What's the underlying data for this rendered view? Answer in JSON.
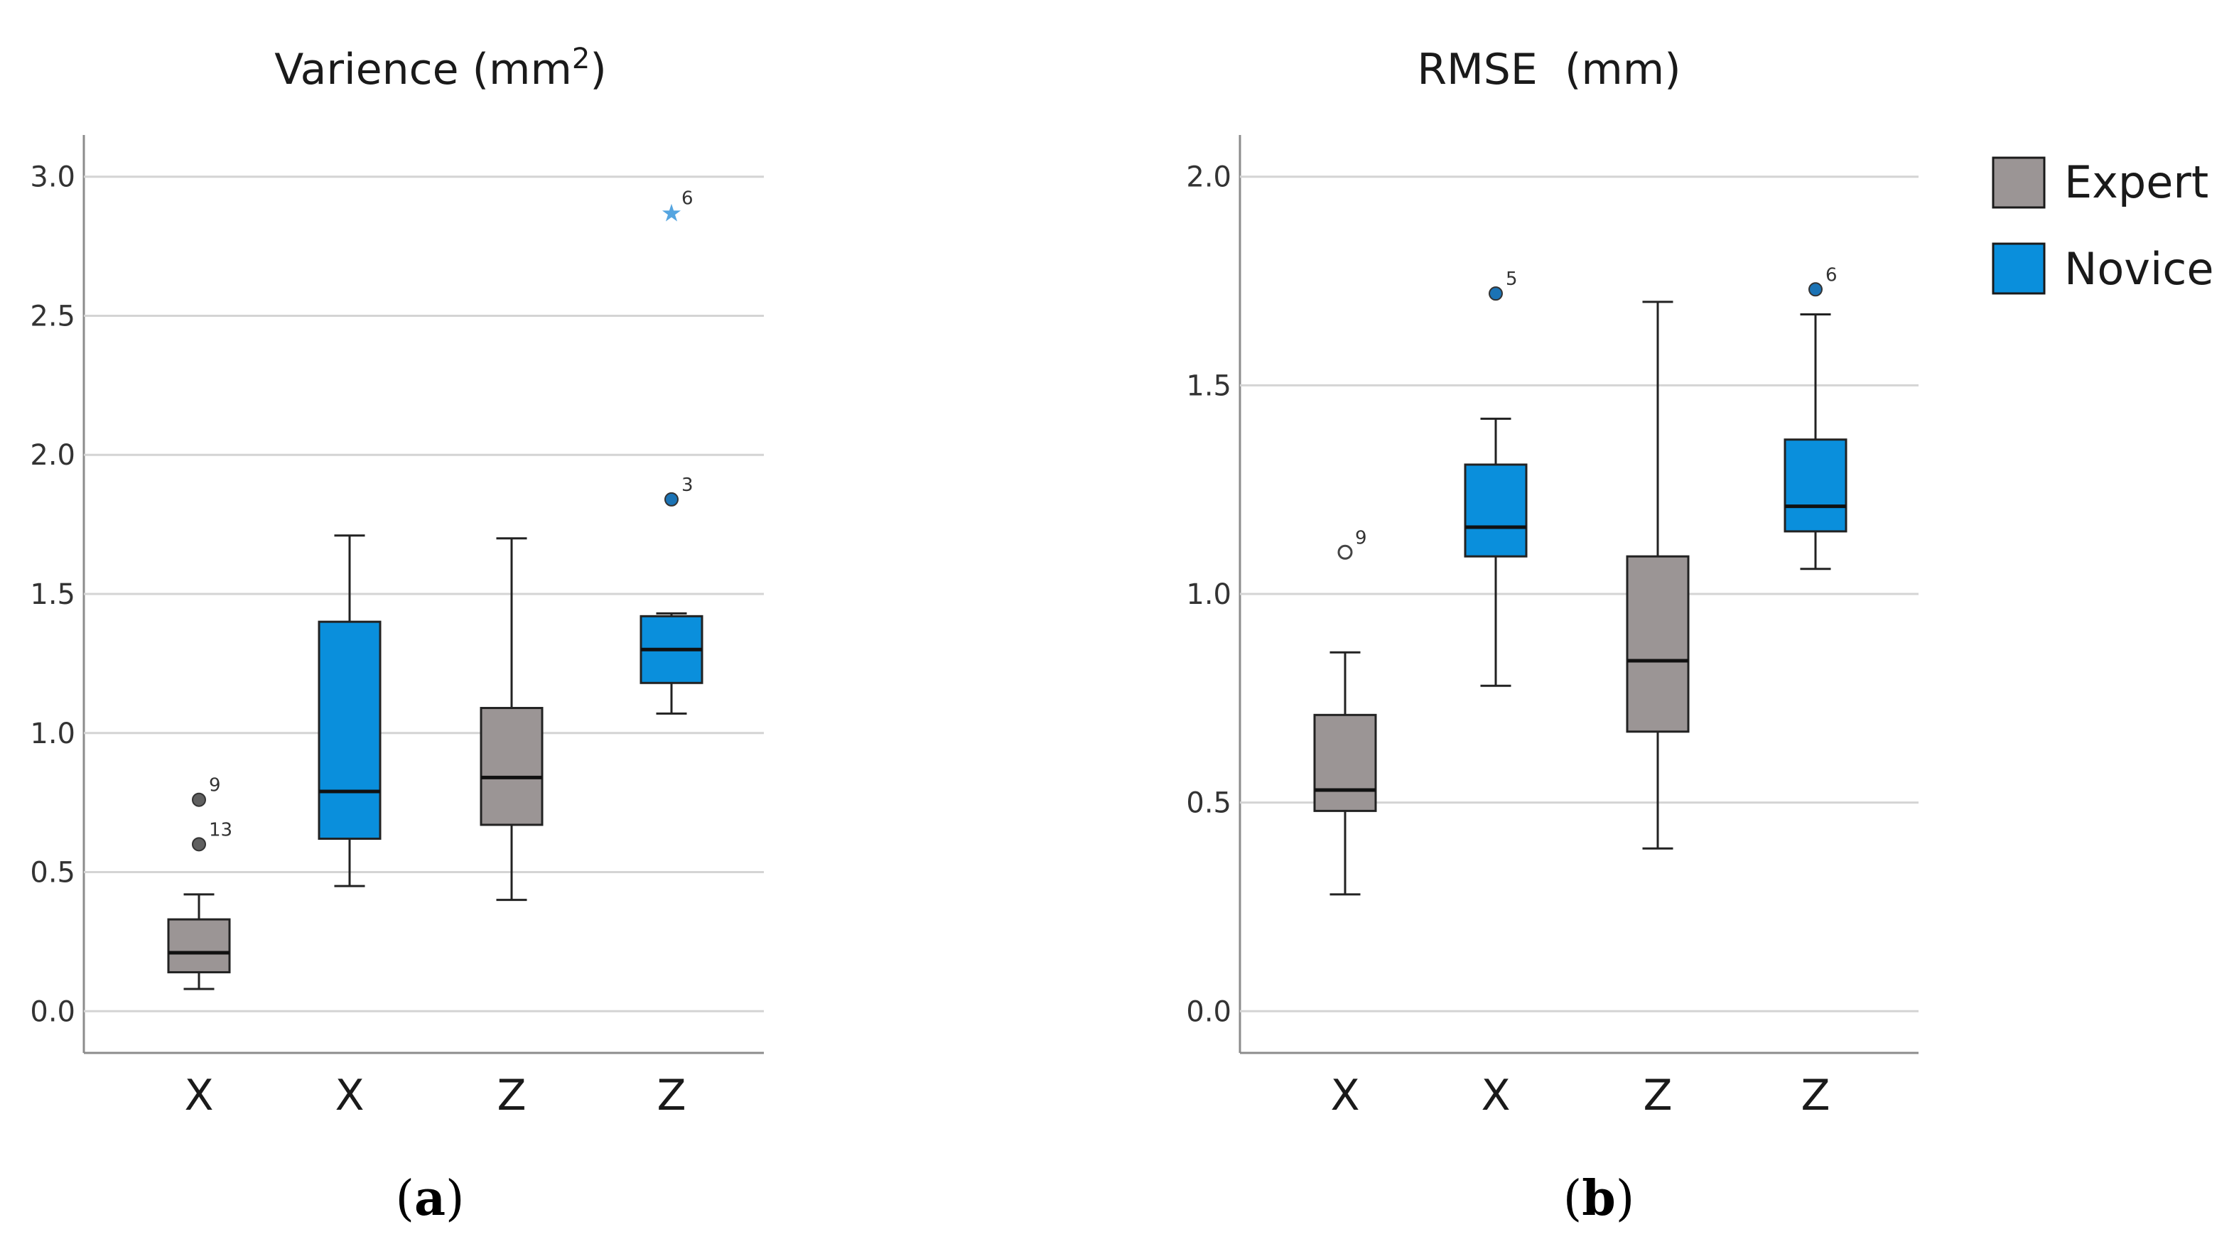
{
  "colors": {
    "expert": "#9b9595",
    "novice": "#0a8fdc",
    "outlier_expert": "#5f5f5f",
    "outlier_novice": "#1b73b5",
    "extreme_novice": "#55a5e0",
    "gridline": "#d4d4d4",
    "axis": "#8c8c8c",
    "whisker": "#222222"
  },
  "legend": {
    "items": [
      {
        "label": "Expert",
        "color_key": "expert"
      },
      {
        "label": "Novice",
        "color_key": "novice"
      }
    ],
    "placement": "right"
  },
  "chart_data": [
    {
      "type": "box",
      "panel_label": "a",
      "title": "Varience (mm",
      "title_superscript": "2",
      "title_suffix": ")",
      "ylim": [
        -0.15,
        3.15
      ],
      "yticks": [
        "0.0",
        "0.5",
        "1.0",
        "1.5",
        "2.0",
        "2.5",
        "3.0"
      ],
      "categories": [
        "X",
        "X",
        "Z",
        "Z"
      ],
      "boxes": [
        {
          "category": "X",
          "group": "Expert",
          "min": 0.08,
          "q1": 0.14,
          "median": 0.21,
          "q3": 0.33,
          "max": 0.42,
          "outliers": [
            {
              "value": 0.76,
              "label": "9",
              "kind": "outlier"
            },
            {
              "value": 0.6,
              "label": "13",
              "kind": "outlier"
            }
          ]
        },
        {
          "category": "X",
          "group": "Novice",
          "min": 0.45,
          "q1": 0.62,
          "median": 0.79,
          "q3": 1.4,
          "max": 1.71,
          "outliers": []
        },
        {
          "category": "Z",
          "group": "Expert",
          "min": 0.4,
          "q1": 0.67,
          "median": 0.84,
          "q3": 1.09,
          "max": 1.7,
          "outliers": []
        },
        {
          "category": "Z",
          "group": "Novice",
          "min": 1.07,
          "q1": 1.18,
          "median": 1.3,
          "q3": 1.42,
          "max": 1.43,
          "outliers": [
            {
              "value": 2.87,
              "label": "6",
              "kind": "extreme"
            },
            {
              "value": 1.84,
              "label": "3",
              "kind": "outlier"
            }
          ]
        }
      ]
    },
    {
      "type": "box",
      "panel_label": "b",
      "title": "RMSE  (mm)",
      "title_superscript": "",
      "title_suffix": "",
      "ylim": [
        -0.1,
        2.1
      ],
      "yticks": [
        "0.0",
        "0.5",
        "1.0",
        "1.5",
        "2.0"
      ],
      "categories": [
        "X",
        "X",
        "Z",
        "Z"
      ],
      "boxes": [
        {
          "category": "X",
          "group": "Expert",
          "min": 0.28,
          "q1": 0.48,
          "median": 0.53,
          "q3": 0.71,
          "max": 0.86,
          "outliers": [
            {
              "value": 1.1,
              "label": "9",
              "kind": "open"
            }
          ]
        },
        {
          "category": "X",
          "group": "Novice",
          "min": 0.78,
          "q1": 1.09,
          "median": 1.16,
          "q3": 1.31,
          "max": 1.42,
          "outliers": [
            {
              "value": 1.72,
              "label": "5",
              "kind": "outlier"
            }
          ]
        },
        {
          "category": "Z",
          "group": "Expert",
          "min": 0.39,
          "q1": 0.67,
          "median": 0.84,
          "q3": 1.09,
          "max": 1.7,
          "outliers": []
        },
        {
          "category": "Z",
          "group": "Novice",
          "min": 1.06,
          "q1": 1.15,
          "median": 1.21,
          "q3": 1.37,
          "max": 1.67,
          "outliers": [
            {
              "value": 1.73,
              "label": "6",
              "kind": "outlier"
            }
          ]
        }
      ]
    }
  ]
}
